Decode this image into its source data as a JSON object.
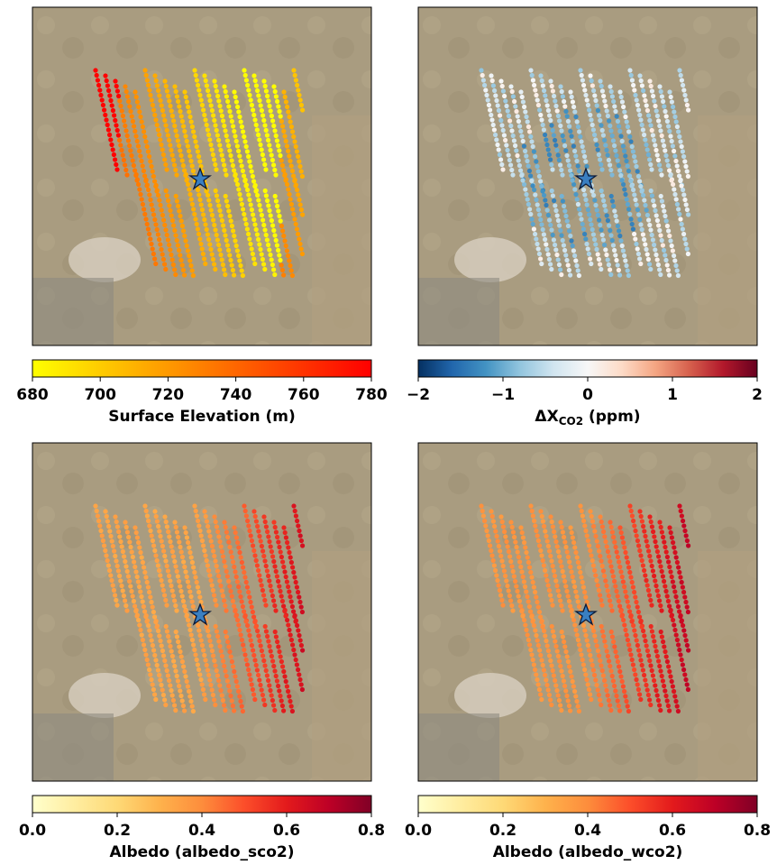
{
  "chart_data": [
    {
      "type": "scatter",
      "colorbar": {
        "colors": [
          "#ffff00",
          "#ff0000"
        ],
        "lim": [
          680,
          780
        ],
        "ticks": [
          680,
          700,
          720,
          740,
          760,
          780
        ],
        "label": "Surface Elevation (m)"
      }
    },
    {
      "type": "scatter",
      "colorbar": {
        "colors": [
          "#053061",
          "#2166ac",
          "#4393c3",
          "#92c5de",
          "#d1e5f0",
          "#f7f7f7",
          "#fddbc7",
          "#f4a582",
          "#d6604d",
          "#b2182b",
          "#67001f"
        ],
        "lim": [
          -2,
          2
        ],
        "ticks": [
          {
            "value": -2,
            "label": "−2"
          },
          {
            "value": -1,
            "label": "−1"
          },
          0,
          1,
          2
        ],
        "label": {
          "main": "ΔX",
          "sub": "CO2",
          "rest": " (ppm)"
        }
      }
    },
    {
      "type": "scatter",
      "colorbar": {
        "colors": [
          "#ffffcc",
          "#ffeda0",
          "#fed976",
          "#feb24c",
          "#fd8d3c",
          "#fc4e2a",
          "#e31a1c",
          "#bd0026",
          "#800026"
        ],
        "lim": [
          0,
          0.8
        ],
        "ticks": [
          {
            "value": 0,
            "label": "0.0"
          },
          0.2,
          0.4,
          0.6,
          0.8
        ],
        "label": "Albedo (albedo_sco2)"
      }
    },
    {
      "type": "scatter",
      "colorbar": {
        "colors": [
          "#ffffcc",
          "#ffeda0",
          "#fed976",
          "#feb24c",
          "#fd8d3c",
          "#fc4e2a",
          "#e31a1c",
          "#bd0026",
          "#800026"
        ],
        "lim": [
          0,
          0.8
        ],
        "ticks": [
          {
            "value": 0,
            "label": "0.0"
          },
          0.2,
          0.4,
          0.6,
          0.8
        ],
        "label": "Albedo (albedo_wco2)"
      }
    }
  ]
}
